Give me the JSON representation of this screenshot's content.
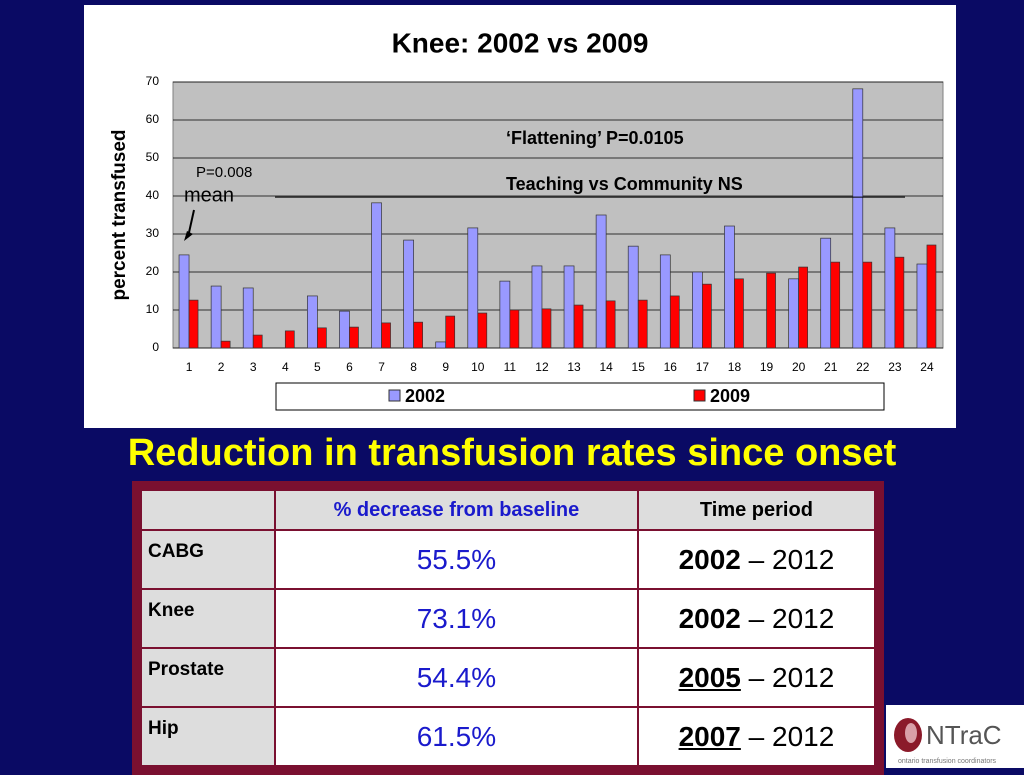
{
  "chart_data": {
    "type": "bar",
    "title": "Knee: 2002 vs 2009",
    "y_label": "percent transfused",
    "categories": [
      "1",
      "2",
      "3",
      "4",
      "5",
      "6",
      "7",
      "8",
      "9",
      "10",
      "11",
      "12",
      "13",
      "14",
      "15",
      "16",
      "17",
      "18",
      "19",
      "20",
      "21",
      "22",
      "23",
      "24"
    ],
    "series": [
      {
        "name": "2002",
        "color": "#9999ff",
        "values": [
          24.5,
          16.3,
          15.8,
          null,
          13.7,
          9.7,
          38.2,
          28.4,
          1.6,
          31.6,
          17.6,
          21.6,
          21.6,
          35,
          26.8,
          24.5,
          20,
          32.1,
          null,
          18.2,
          28.9,
          68.2,
          31.6,
          22.1
        ]
      },
      {
        "name": "2009",
        "color": "#ff0000",
        "values": [
          12.6,
          1.8,
          3.4,
          4.5,
          5.3,
          5.5,
          6.6,
          6.8,
          8.4,
          9.2,
          10,
          10.3,
          11.3,
          12.4,
          12.6,
          13.7,
          16.8,
          18.2,
          19.7,
          21.3,
          22.6,
          22.6,
          23.9,
          27.1
        ]
      }
    ],
    "ylim": [
      0,
      70
    ],
    "yticks": [
      0,
      10,
      20,
      30,
      40,
      50,
      60,
      70
    ],
    "grid": true,
    "mean_line": {
      "label": "mean",
      "p_value": "P=0.008",
      "value": 39.7
    },
    "annotations": [
      "‘Flattening’ P=0.0105",
      "Teaching vs Community NS"
    ]
  },
  "heading": "Reduction in transfusion rates since onset",
  "table": {
    "header": [
      "% decrease from baseline",
      "Time period"
    ],
    "rows": [
      {
        "label": "CABG",
        "decrease": "55.5%",
        "start": "2002",
        "rest": "– 2012",
        "underline": false
      },
      {
        "label": "Knee",
        "decrease": "73.1%",
        "start": "2002",
        "rest": "– 2012",
        "underline": false
      },
      {
        "label": "Prostate",
        "decrease": "54.4%",
        "start": "2005",
        "rest": "– 2012",
        "underline": true
      },
      {
        "label": "Hip",
        "decrease": "61.5%",
        "start": "2007",
        "rest": "– 2012",
        "underline": true
      }
    ]
  },
  "logo": {
    "name": "NTraC",
    "tagline": "ontario transfusion coordinators"
  }
}
